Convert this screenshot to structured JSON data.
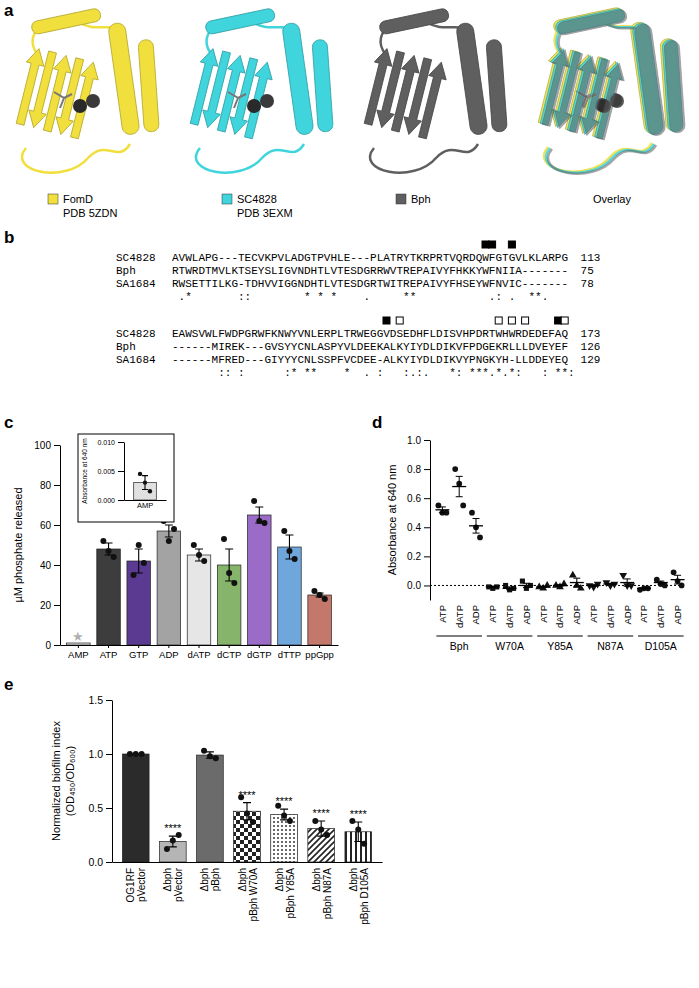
{
  "panel_a": {
    "panel_label": "a",
    "structures": [
      {
        "name": "FomD",
        "pdb": "PDB 5ZDN",
        "color": "#f0df3c"
      },
      {
        "name": "SC4828",
        "pdb": "PDB 3EXM",
        "color": "#40d4dc"
      },
      {
        "name": "Bph",
        "color": "#5f5f5f"
      }
    ],
    "overlay": "Overlay"
  },
  "panel_b": {
    "panel_label": "b",
    "blocks": [
      {
        "rows": [
          {
            "name": "SC4828",
            "sequence": "AVWLAPG---TECVKPVLADGTPVHLE---PLATRYTKRPRTVQRDQWFGTGVLKLARPG",
            "end": 113
          },
          {
            "name": "Bph",
            "sequence": "RTWRDTMVLKTSEYSLIGVNDHTLVTESDGRRWVTREPAIVYFHKKYWFNIIA-------",
            "end": 75
          },
          {
            "name": "SA1684",
            "sequence": "RWSETTILKG-TDHVVIGGNDHTLVTESDGRTWITREPAIVYFHSEYWFNVIC-------",
            "end": 78
          }
        ],
        "conservation": " .*       ::        * * *    .     **           .: .  **.",
        "markers": [
          {
            "column": 47,
            "filled": true
          },
          {
            "column": 48,
            "filled": true
          },
          {
            "column": 51,
            "filled": true
          }
        ]
      },
      {
        "rows": [
          {
            "name": "SC4828",
            "sequence": "EAWSVWLFWDPGRWFKNWYVNLERPLTRWEGGVDSEDHFLDISVHPDRTWHWRDEDEFAQ",
            "end": 173
          },
          {
            "name": "Bph",
            "sequence": "------MIREK---GVSYYCNLASPYVLDEEKALKYIYDLDIKVFPDGEKRLLLDVEYEF",
            "end": 126
          },
          {
            "name": "SA1684",
            "sequence": "------MFRED---GIYYYCNLSSPFVCDEE-ALKYIYDLDIKVYPNGKYH-LLDDEYEQ",
            "end": 129
          }
        ],
        "conservation": "       :: :      :* **    *  . :   :.:.   *: ***.*.*:   : **:",
        "markers": [
          {
            "column": 32,
            "filled": true
          },
          {
            "column": 34,
            "filled": false
          },
          {
            "column": 49,
            "filled": false
          },
          {
            "column": 51,
            "filled": false
          },
          {
            "column": 53,
            "filled": false
          },
          {
            "column": 58,
            "filled": true
          },
          {
            "column": 59,
            "filled": false
          }
        ]
      }
    ]
  },
  "chart_data": [
    {
      "type": "bar",
      "panel_label": "c",
      "ylabel": "µM phosphate released",
      "categories": [
        "AMP",
        "ATP",
        "GTP",
        "ADP",
        "dATP",
        "dCTP",
        "dGTP",
        "dTTP",
        "ppGpp"
      ],
      "values": [
        1,
        48,
        42,
        57,
        45,
        40,
        65,
        49,
        25
      ],
      "errors": [
        null,
        3,
        6,
        3,
        3,
        8,
        4,
        6,
        1
      ],
      "points": [
        null,
        [
          52,
          47,
          44
        ],
        [
          35,
          50,
          41
        ],
        [
          62,
          52,
          58
        ],
        [
          50,
          45,
          42
        ],
        [
          53,
          36,
          31
        ],
        [
          72,
          62,
          61
        ],
        [
          57,
          47,
          43
        ],
        [
          27,
          25,
          23
        ]
      ],
      "colors": [
        "#e0e0e0",
        "#3d3d3d",
        "#5b3a92",
        "#a3a3a3",
        "#e6e6e6",
        "#86b46a",
        "#9a6cc7",
        "#6fa6dc",
        "#c4776b"
      ],
      "ylim": [
        0,
        100
      ],
      "yticks": [
        0,
        20,
        40,
        60,
        80,
        100
      ],
      "annotations": [
        {
          "category": 0,
          "text": "★"
        }
      ]
    },
    {
      "type": "bar",
      "ylabel": "Absorbance at 640 nm",
      "categories": [
        "AMP"
      ],
      "values": [
        0.003
      ],
      "errors": [
        0.0012
      ],
      "points": [
        [
          0.0045,
          0.003,
          0.0015
        ]
      ],
      "colors": [
        "#e0e0e0"
      ],
      "ylim": [
        0,
        0.01
      ],
      "yticks": [
        {
          "value": 0,
          "label": "0.000"
        },
        {
          "value": 0.005,
          "label": "0.005"
        },
        {
          "value": 0.01,
          "label": "0.010"
        }
      ]
    },
    {
      "type": "dot",
      "panel_label": "d",
      "ylabel": "Absorbance at 640 nm",
      "ylim": [
        -0.1,
        1.0
      ],
      "yticks": [
        {
          "value": 0,
          "label": "0.0"
        },
        {
          "value": 0.2,
          "label": "0.2"
        },
        {
          "value": 0.4,
          "label": "0.4"
        },
        {
          "value": 0.6,
          "label": "0.6"
        },
        {
          "value": 0.8,
          "label": "0.8"
        },
        {
          "value": 1.0,
          "label": "1.0"
        }
      ],
      "reference_line": 0,
      "groups": [
        {
          "name": "Bph",
          "marker": "circle",
          "categories": [
            "ATP",
            "dATP",
            "ADP"
          ],
          "values": [
            0.52,
            0.68,
            0.41
          ],
          "errors": [
            0.02,
            0.07,
            0.05
          ],
          "points": [
            [
              0.55,
              0.5,
              0.5
            ],
            [
              0.8,
              0.7,
              0.55
            ],
            [
              0.5,
              0.4,
              0.33
            ]
          ]
        },
        {
          "name": "W70A",
          "marker": "square",
          "categories": [
            "ATP",
            "dATP",
            "ADP"
          ],
          "values": [
            -0.01,
            -0.02,
            0.0
          ],
          "errors": [
            0.005,
            0.01,
            0.015
          ],
          "points": [
            [
              -0.01,
              -0.02,
              -0.01
            ],
            [
              0.0,
              -0.03,
              -0.02
            ],
            [
              0.03,
              -0.02,
              0.0
            ]
          ]
        },
        {
          "name": "Y85A",
          "marker": "triangle",
          "categories": [
            "ATP",
            "dATP",
            "ADP"
          ],
          "values": [
            -0.01,
            0.0,
            0.02
          ],
          "errors": [
            0.005,
            0.005,
            0.03
          ],
          "points": [
            [
              -0.01,
              -0.02,
              0.0
            ],
            [
              0.0,
              -0.01,
              0.01
            ],
            [
              0.07,
              0.0,
              -0.02
            ]
          ]
        },
        {
          "name": "N87A",
          "marker": "triangle-down",
          "categories": [
            "ATP",
            "dATP",
            "ADP"
          ],
          "values": [
            0.0,
            0.01,
            0.02
          ],
          "errors": [
            0.005,
            0.005,
            0.025
          ],
          "points": [
            [
              0.0,
              -0.01,
              0.01
            ],
            [
              0.02,
              0.0,
              0.01
            ],
            [
              0.07,
              0.0,
              0.0
            ]
          ]
        },
        {
          "name": "D105A",
          "marker": "circle",
          "categories": [
            "ATP",
            "dATP",
            "ADP"
          ],
          "values": [
            -0.02,
            0.02,
            0.04
          ],
          "errors": [
            0.003,
            0.01,
            0.03
          ],
          "points": [
            [
              -0.03,
              -0.02,
              -0.02
            ],
            [
              0.04,
              0.01,
              0.0
            ],
            [
              0.09,
              0.03,
              0.0
            ]
          ]
        }
      ]
    },
    {
      "type": "bar",
      "panel_label": "e",
      "ylabel": [
        "Normalized biofilm index",
        "(OD₄₅₀/OD₆₀₀)"
      ],
      "categories": [
        [
          "OG1RF",
          "pVector"
        ],
        [
          "Δbph",
          "pVector"
        ],
        [
          "Δbph",
          "pBph"
        ],
        [
          "Δbph",
          "pBph W70A"
        ],
        [
          "Δbph",
          "pBph Y85A"
        ],
        [
          "Δbph",
          "pBph N87A"
        ],
        [
          "Δbph",
          "pBph D105A"
        ]
      ],
      "values": [
        1.0,
        0.19,
        0.99,
        0.47,
        0.44,
        0.31,
        0.28
      ],
      "errors": [
        0,
        0.05,
        0.03,
        0.08,
        0.05,
        0.07,
        0.09
      ],
      "points": [
        [
          1,
          1,
          1
        ],
        [
          0.12,
          0.2,
          0.25
        ],
        [
          1.03,
          0.98,
          0.96
        ],
        [
          0.6,
          0.45,
          0.37
        ],
        [
          0.52,
          0.43,
          0.38
        ],
        [
          0.38,
          0.3,
          0.25
        ],
        [
          0.38,
          0.3,
          0.17
        ]
      ],
      "colors": [
        "#2b2b2b",
        "#b5b5b5",
        "#6b6b6b",
        "#ffffff",
        "#ffffff",
        "#ffffff",
        "#ffffff"
      ],
      "ylim": [
        0,
        1.5
      ],
      "yticks": [
        {
          "value": 0,
          "label": "0.0"
        },
        {
          "value": 0.5,
          "label": "0.5"
        },
        {
          "value": 1.0,
          "label": "1.0"
        },
        {
          "value": 1.5,
          "label": "1.5"
        }
      ],
      "annotations": [
        {
          "category": 1,
          "text": "****"
        },
        {
          "category": 3,
          "text": "****"
        },
        {
          "category": 4,
          "text": "****"
        },
        {
          "category": 5,
          "text": "****"
        },
        {
          "category": 6,
          "text": "****"
        }
      ]
    }
  ]
}
